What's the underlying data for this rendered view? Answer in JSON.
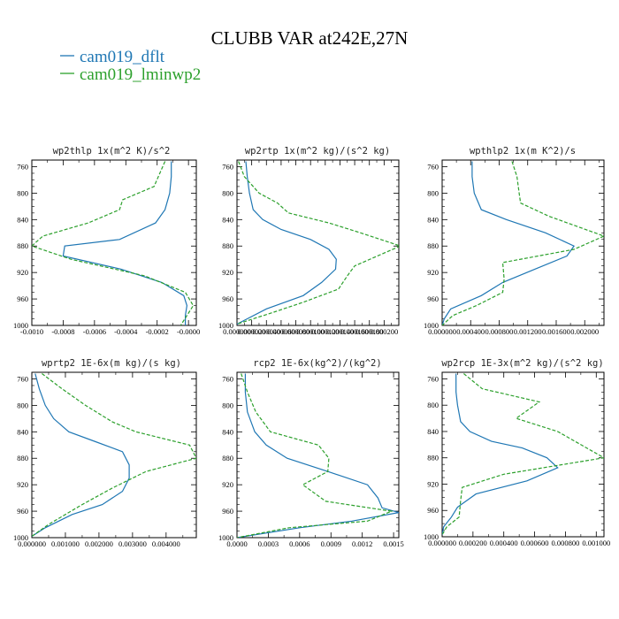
{
  "figure": {
    "title": "CLUBB VAR at242E,27N",
    "legend": [
      {
        "label": "cam019_dflt",
        "color": "#1f77b4",
        "dash": "solid"
      },
      {
        "label": "cam019_lminwp2",
        "color": "#2ca02c",
        "dash": "dashed"
      }
    ]
  },
  "chart_data": [
    {
      "type": "line",
      "title": "wp2thlp  1x(m^2 K)/s^2",
      "ylabel": "pressure",
      "ylim": [
        1000,
        750
      ],
      "yticks": [
        760,
        800,
        840,
        880,
        920,
        960,
        1000
      ],
      "xlim": [
        -0.001,
        5e-05
      ],
      "xticks": [
        -0.001,
        -0.0008,
        -0.0006,
        -0.0004,
        -0.0002,
        0.0
      ],
      "xtick_labels": [
        "-0.0010",
        "-0.0008",
        "-0.0006",
        "-0.0004",
        "-0.0002",
        "-0.0000"
      ],
      "series": [
        {
          "name": "cam019_dflt",
          "color": "#1f77b4",
          "dash": "solid",
          "x": [
            -0.00011,
            -0.00011,
            -0.00012,
            -0.00015,
            -0.00021,
            -0.00044,
            -0.00079,
            -0.0008,
            -0.00043,
            -0.00017,
            -3e-05,
            -1e-05,
            -2e-05,
            -2e-05
          ],
          "y": [
            752,
            775,
            800,
            825,
            845,
            870,
            880,
            895,
            915,
            935,
            955,
            970,
            985,
            1000
          ]
        },
        {
          "name": "cam019_lminwp2",
          "color": "#2ca02c",
          "dash": "dashed",
          "x": [
            -0.00015,
            -0.00022,
            -0.00042,
            -0.00044,
            -0.00064,
            -0.00093,
            -0.001,
            -0.00075,
            -0.00028,
            -2e-05,
            3e-05,
            -1e-05,
            -5e-05
          ],
          "y": [
            752,
            790,
            810,
            825,
            845,
            865,
            880,
            900,
            925,
            950,
            970,
            985,
            1000
          ]
        }
      ]
    },
    {
      "type": "line",
      "title": "wp2rtp  1x(m^2 kg)/(s^2 kg)",
      "ylabel": "pressure",
      "ylim": [
        1000,
        750
      ],
      "yticks": [
        760,
        800,
        840,
        880,
        920,
        960,
        1000
      ],
      "xlim": [
        0.0,
        0.00022
      ],
      "xticks": [
        0.0,
        2e-05,
        4e-05,
        6e-05,
        8e-05,
        0.0001,
        0.00012,
        0.00014,
        0.00016,
        0.00018,
        0.0002
      ],
      "xtick_labels": [
        "0.000000",
        "0.000020",
        "0.000040",
        "0.000060",
        "0.000080",
        "0.000100",
        "0.000120",
        "0.000140",
        "0.000160",
        "0.000180",
        "0.000200"
      ],
      "series": [
        {
          "name": "cam019_dflt",
          "color": "#1f77b4",
          "dash": "solid",
          "x": [
            1.2e-05,
            1.4e-05,
            1.7e-05,
            2.2e-05,
            3.5e-05,
            6e-05,
            0.0001,
            0.000125,
            0.000135,
            0.000134,
            0.000115,
            9e-05,
            4e-05,
            0.0
          ],
          "y": [
            752,
            775,
            800,
            825,
            840,
            855,
            870,
            885,
            900,
            915,
            935,
            955,
            975,
            998
          ]
        },
        {
          "name": "cam019_lminwp2",
          "color": "#2ca02c",
          "dash": "dashed",
          "x": [
            2e-06,
            1e-05,
            3e-05,
            5.5e-05,
            7e-05,
            0.000125,
            0.000168,
            0.000222,
            0.00016,
            0.00015,
            0.000138,
            9e-05,
            5e-05,
            0.0
          ],
          "y": [
            752,
            775,
            800,
            815,
            830,
            845,
            860,
            880,
            910,
            925,
            945,
            965,
            980,
            998
          ]
        }
      ]
    },
    {
      "type": "line",
      "title": "wpthlp2  1x(m K^2)/s",
      "ylabel": "pressure",
      "ylim": [
        1000,
        750
      ],
      "yticks": [
        760,
        800,
        840,
        880,
        920,
        960,
        1000
      ],
      "xlim": [
        0.0,
        0.00227
      ],
      "xticks": [
        0.0,
        0.0004,
        0.0008,
        0.0012,
        0.0016,
        0.002
      ],
      "xtick_labels": [
        "0.000000",
        "0.000400",
        "0.000800",
        "0.001200",
        "0.001600",
        "0.002000"
      ],
      "series": [
        {
          "name": "cam019_dflt",
          "color": "#1f77b4",
          "dash": "solid",
          "x": [
            0.00042,
            0.00042,
            0.00045,
            0.00055,
            0.0009,
            0.00145,
            0.00185,
            0.00175,
            0.0013,
            0.00085,
            0.00055,
            0.00012,
            3e-05,
            0.0
          ],
          "y": [
            752,
            775,
            800,
            825,
            840,
            860,
            880,
            895,
            915,
            935,
            955,
            975,
            990,
            1000
          ]
        },
        {
          "name": "cam019_lminwp2",
          "color": "#2ca02c",
          "dash": "dashed",
          "x": [
            0.00098,
            0.00105,
            0.00108,
            0.0011,
            0.0015,
            0.00227,
            0.00185,
            0.00085,
            0.00087,
            0.00085,
            0.00048,
            0.00015,
            0.0
          ],
          "y": [
            752,
            775,
            800,
            815,
            835,
            865,
            885,
            905,
            930,
            950,
            970,
            985,
            1000
          ]
        }
      ]
    },
    {
      "type": "line",
      "title": "wprtp2  1E-6x(m kg)/(s kg)",
      "ylabel": "pressure",
      "ylim": [
        1000,
        750
      ],
      "yticks": [
        760,
        800,
        840,
        880,
        920,
        960,
        1000
      ],
      "xlim": [
        0.0,
        0.0049
      ],
      "xticks": [
        0.0,
        0.001,
        0.002,
        0.003,
        0.004
      ],
      "xtick_labels": [
        "0.000000",
        "0.001000",
        "0.002000",
        "0.003000",
        "0.004000"
      ],
      "series": [
        {
          "name": "cam019_dflt",
          "color": "#1f77b4",
          "dash": "solid",
          "x": [
            0.0001,
            0.00022,
            0.0004,
            0.00065,
            0.0011,
            0.0019,
            0.0027,
            0.0029,
            0.0029,
            0.0027,
            0.0021,
            0.0012,
            0.0004,
            0.0
          ],
          "y": [
            752,
            775,
            800,
            820,
            840,
            855,
            870,
            890,
            910,
            930,
            950,
            965,
            985,
            998
          ]
        },
        {
          "name": "cam019_lminwp2",
          "color": "#2ca02c",
          "dash": "dashed",
          "x": [
            0.0003,
            0.0009,
            0.0016,
            0.0024,
            0.0031,
            0.0047,
            0.0049,
            0.0034,
            0.0024,
            0.0015,
            0.0005,
            0.0
          ],
          "y": [
            752,
            775,
            800,
            825,
            840,
            860,
            880,
            900,
            925,
            950,
            980,
            998
          ]
        }
      ]
    },
    {
      "type": "line",
      "title": "rcp2  1E-6x(kg^2)/(kg^2)",
      "ylabel": "pressure",
      "ylim": [
        1000,
        750
      ],
      "yticks": [
        760,
        800,
        840,
        880,
        920,
        960,
        1000
      ],
      "xlim": [
        0.0,
        0.00155
      ],
      "xticks": [
        0.0,
        0.0003,
        0.0006,
        0.0009,
        0.0012,
        0.0015
      ],
      "xtick_labels": [
        "0.0000",
        "0.0003",
        "0.0006",
        "0.0009",
        "0.0012",
        "0.0015"
      ],
      "series": [
        {
          "name": "cam019_dflt",
          "color": "#1f77b4",
          "dash": "solid",
          "x": [
            8e-05,
            8e-05,
            0.0001,
            0.00017,
            0.00028,
            0.00048,
            0.00087,
            0.00125,
            0.00135,
            0.00139,
            0.00155,
            0.0011,
            0.0006,
            0.0
          ],
          "y": [
            752,
            780,
            810,
            840,
            860,
            880,
            900,
            920,
            940,
            955,
            962,
            975,
            985,
            1000
          ]
        },
        {
          "name": "cam019_lminwp2",
          "color": "#2ca02c",
          "dash": "dashed",
          "x": [
            4e-05,
            0.0001,
            0.00018,
            0.00032,
            0.00078,
            0.00088,
            0.00087,
            0.00063,
            0.00085,
            0.00148,
            0.00125,
            0.0005,
            0.0
          ],
          "y": [
            752,
            780,
            810,
            840,
            860,
            880,
            900,
            920,
            945,
            960,
            975,
            985,
            1000
          ]
        }
      ]
    },
    {
      "type": "line",
      "title": "wp2rcp  1E-3x(m^2 kg)/(s^2 kg)",
      "ylabel": "pressure",
      "ylim": [
        1000,
        750
      ],
      "yticks": [
        760,
        800,
        840,
        880,
        920,
        960,
        1000
      ],
      "xlim": [
        0.0,
        0.00105
      ],
      "xticks": [
        0.0,
        0.0002,
        0.0004,
        0.0006,
        0.0008,
        0.001
      ],
      "xtick_labels": [
        "0.000000",
        "0.000200",
        "0.000400",
        "0.000600",
        "0.000800",
        "0.001000"
      ],
      "series": [
        {
          "name": "cam019_dflt",
          "color": "#1f77b4",
          "dash": "solid",
          "x": [
            9e-05,
            9e-05,
            0.0001,
            0.00012,
            0.00018,
            0.00032,
            0.00052,
            0.00068,
            0.00075,
            0.00055,
            0.00022,
            0.0001,
            6e-05,
            1e-05,
            0.0
          ],
          "y": [
            752,
            780,
            800,
            825,
            840,
            855,
            865,
            880,
            895,
            915,
            935,
            955,
            970,
            985,
            997
          ]
        },
        {
          "name": "cam019_lminwp2",
          "color": "#2ca02c",
          "dash": "dashed",
          "x": [
            0.00014,
            0.00026,
            0.00063,
            0.00048,
            0.00075,
            0.00105,
            0.0004,
            0.00013,
            0.00012,
            0.00011,
            3e-05,
            0.0
          ],
          "y": [
            752,
            775,
            795,
            820,
            840,
            880,
            905,
            925,
            945,
            970,
            985,
            997
          ]
        }
      ]
    }
  ]
}
